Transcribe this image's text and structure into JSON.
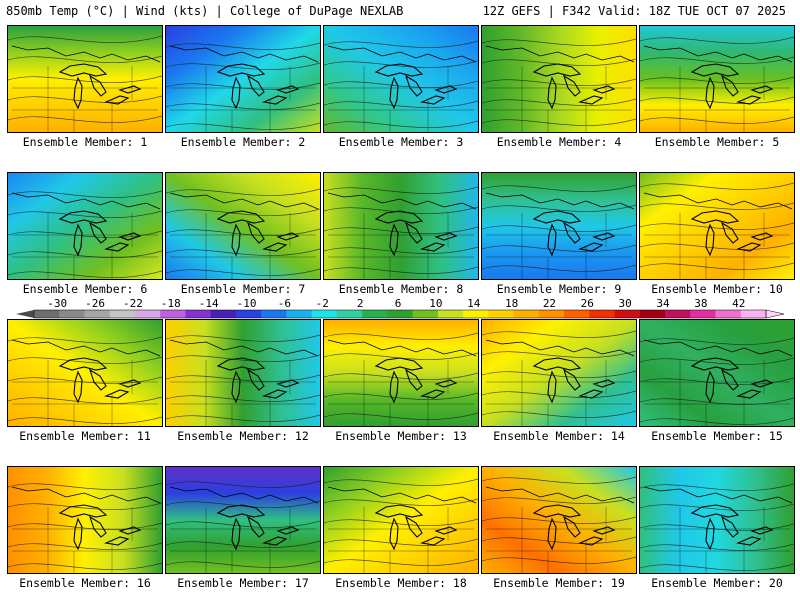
{
  "header": {
    "left": "850mb Temp (°C) | Wind (kts) | College of DuPage NEXLAB",
    "right": "12Z GEFS | F342 Valid: 18Z TUE OCT 07 2025"
  },
  "colorbar": {
    "labels": [
      "-30",
      "-26",
      "-22",
      "-18",
      "-14",
      "-10",
      "-6",
      "-2",
      "2",
      "6",
      "10",
      "14",
      "18",
      "22",
      "26",
      "30",
      "34",
      "38",
      "42"
    ],
    "colors": [
      "#6e6e6e",
      "#8a8a8a",
      "#a6a6a6",
      "#c4c4c4",
      "#d8a8e8",
      "#c060e0",
      "#8830d0",
      "#4a20b8",
      "#2a40e0",
      "#1a78f0",
      "#1ab0f0",
      "#20e0e8",
      "#30d0a0",
      "#28b050",
      "#30a030",
      "#70c020",
      "#c8e020",
      "#fff000",
      "#ffd000",
      "#ffb000",
      "#ff9000",
      "#ff6000",
      "#f03000",
      "#d01010",
      "#a00010",
      "#c01060",
      "#e030a0",
      "#f070d0",
      "#ffb0f0"
    ]
  },
  "members": [
    {
      "label": "Ensemble Member: 1",
      "colors": [
        "#28a040",
        "#90d020",
        "#fff000",
        "#ffd000",
        "#ffb000"
      ]
    },
    {
      "label": "Ensemble Member: 2",
      "colors": [
        "#2a40e0",
        "#1a78f0",
        "#20d8e8",
        "#30c080",
        "#c8e020"
      ]
    },
    {
      "label": "Ensemble Member: 3",
      "colors": [
        "#1a78f0",
        "#1aa8f0",
        "#20c8e8",
        "#30c890",
        "#60b830"
      ]
    },
    {
      "label": "Ensemble Member: 4",
      "colors": [
        "#30a030",
        "#60b828",
        "#a8d820",
        "#e8f000",
        "#ffe000"
      ]
    },
    {
      "label": "Ensemble Member: 5",
      "colors": [
        "#20c8d8",
        "#30b870",
        "#68c020",
        "#fff000",
        "#ffb000"
      ]
    },
    {
      "label": "Ensemble Member: 6",
      "colors": [
        "#1a88f0",
        "#20c8e8",
        "#30c080",
        "#70c020",
        "#d8e820"
      ]
    },
    {
      "label": "Ensemble Member: 7",
      "colors": [
        "#fff000",
        "#c8e020",
        "#70c020",
        "#20c8e8",
        "#1a78f0"
      ]
    },
    {
      "label": "Ensemble Member: 8",
      "colors": [
        "#c8e020",
        "#58b828",
        "#30a030",
        "#30c080",
        "#20b8e8"
      ]
    },
    {
      "label": "Ensemble Member: 9",
      "colors": [
        "#30a030",
        "#30c090",
        "#20c8e8",
        "#1a98f0",
        "#1a78f0"
      ]
    },
    {
      "label": "Ensemble Member: 10",
      "colors": [
        "#70c020",
        "#fff000",
        "#ffd000",
        "#ffb000",
        "#fff000"
      ]
    },
    {
      "label": "Ensemble Member: 11",
      "colors": [
        "#30a030",
        "#90d020",
        "#fff000",
        "#ffd000",
        "#ffb000"
      ]
    },
    {
      "label": "Ensemble Member: 12",
      "colors": [
        "#ffd000",
        "#c8e020",
        "#30a030",
        "#30c090",
        "#20c8e8"
      ]
    },
    {
      "label": "Ensemble Member: 13",
      "colors": [
        "#ffb000",
        "#fff000",
        "#c8e020",
        "#58b828",
        "#30a030"
      ]
    },
    {
      "label": "Ensemble Member: 14",
      "colors": [
        "#ffb000",
        "#fff000",
        "#c8e020",
        "#30c090",
        "#20c8e8"
      ]
    },
    {
      "label": "Ensemble Member: 15",
      "colors": [
        "#30a030",
        "#28a040",
        "#30b060",
        "#28a040",
        "#30c080"
      ]
    },
    {
      "label": "Ensemble Member: 16",
      "colors": [
        "#ff9000",
        "#ffb000",
        "#fff000",
        "#c8e020",
        "#30a030"
      ]
    },
    {
      "label": "Ensemble Member: 17",
      "colors": [
        "#6030c8",
        "#2a40e0",
        "#30c080",
        "#30a030",
        "#70c020"
      ]
    },
    {
      "label": "Ensemble Member: 18",
      "colors": [
        "#30a030",
        "#90d020",
        "#fff000",
        "#ffd000",
        "#ffb000"
      ]
    },
    {
      "label": "Ensemble Member: 19",
      "colors": [
        "#20c8e8",
        "#c8e020",
        "#ffb000",
        "#ff7000",
        "#ffb000"
      ]
    },
    {
      "label": "Ensemble Member: 20",
      "colors": [
        "#30c080",
        "#20c8e8",
        "#20d8e0",
        "#30c090",
        "#30a030"
      ]
    }
  ]
}
